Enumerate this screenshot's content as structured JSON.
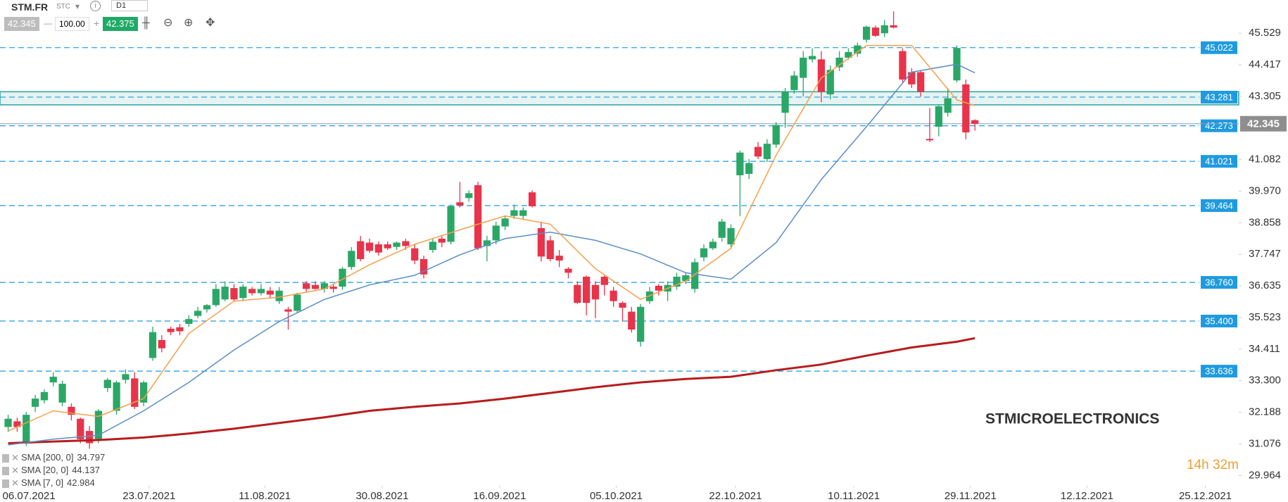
{
  "toolbar": {
    "symbol": "STM.FR",
    "tag": "STC",
    "timeframe": "D1",
    "bid": "42.345",
    "volume": "100.00",
    "ask": "42.375"
  },
  "chart_data": {
    "type": "candlestick",
    "watermark": "STMICROELECTRONICS",
    "countdown": "14h 32m",
    "up_color": "#2aa766",
    "down_color": "#e8334a",
    "x": [
      0,
      1,
      2,
      3,
      4,
      5,
      6,
      7,
      8,
      9,
      10,
      11,
      12,
      13,
      14,
      15,
      16,
      17,
      18,
      19,
      20,
      21,
      22,
      23,
      24,
      25,
      26,
      27,
      28,
      29,
      30,
      31,
      32,
      33,
      34,
      35,
      36,
      37,
      38,
      39,
      40,
      41,
      42,
      43,
      44,
      45,
      46,
      47,
      48,
      49,
      50,
      51,
      52,
      53,
      54,
      55,
      56,
      57,
      58,
      59,
      60,
      61,
      62,
      63,
      64,
      65,
      66,
      67,
      68,
      69,
      70,
      71,
      72,
      73,
      74,
      75,
      76,
      77,
      78,
      79,
      80,
      81,
      82,
      83,
      84,
      85,
      86,
      87,
      88,
      89,
      90,
      91,
      92,
      93,
      94,
      95,
      96,
      97,
      98,
      99,
      100,
      101,
      102,
      103,
      104,
      105,
      106,
      107
    ],
    "open": [
      31.67,
      31.87,
      31.1,
      32.38,
      32.61,
      33.24,
      32.53,
      32.38,
      31.96,
      31.53,
      31.24,
      33.04,
      32.24,
      33.33,
      33.38,
      32.53,
      34.1,
      34.73,
      35.13,
      35.18,
      35.3,
      35.58,
      35.81,
      35.96,
      36.16,
      36.56,
      36.21,
      36.53,
      36.38,
      36.47,
      36.1,
      35.81,
      35.76,
      36.73,
      36.67,
      36.53,
      36.61,
      36.61,
      37.3,
      38.21,
      38.16,
      38.1,
      38.1,
      38.01,
      38.21,
      37.96,
      37.58,
      37.9,
      38.3,
      38.19,
      39.58,
      39.73,
      40.18,
      38.04,
      38.24,
      38.73,
      39.1,
      39.1,
      39.93,
      38.67,
      38.24,
      37.7,
      37.24,
      36.67,
      36.96,
      36.67,
      36.96,
      36.47,
      36.04,
      35.73,
      34.67,
      36.1,
      36.64,
      36.44,
      36.61,
      36.81,
      36.53,
      37.64,
      37.96,
      38.33,
      38.1,
      40.53,
      40.58,
      41.53,
      41.1,
      41.61,
      42.73,
      43.53,
      43.96,
      44.61,
      44.61,
      43.38,
      44.33,
      44.67,
      44.81,
      45.3,
      45.73,
      45.53,
      45.81,
      44.9,
      44.16,
      44.16,
      41.81,
      42.24,
      42.73,
      43.87,
      43.73,
      42.47
    ],
    "high": [
      32.1,
      32.0,
      32.2,
      32.8,
      33.0,
      33.6,
      33.3,
      32.5,
      32.0,
      31.7,
      32.3,
      33.4,
      33.3,
      33.7,
      33.6,
      33.3,
      35.2,
      34.9,
      35.2,
      35.3,
      35.6,
      35.9,
      36.0,
      36.7,
      36.8,
      36.7,
      36.7,
      36.6,
      36.7,
      36.6,
      36.6,
      35.9,
      36.4,
      36.8,
      36.8,
      36.8,
      36.7,
      37.3,
      38.0,
      38.4,
      38.3,
      38.2,
      38.2,
      38.2,
      38.3,
      38.1,
      37.7,
      38.3,
      38.4,
      39.5,
      40.3,
      40.0,
      40.3,
      38.4,
      38.9,
      39.1,
      39.5,
      39.4,
      40.0,
      38.9,
      38.4,
      37.9,
      37.3,
      36.8,
      37.0,
      36.8,
      37.0,
      36.6,
      36.1,
      35.9,
      36.0,
      36.6,
      36.7,
      36.8,
      37.1,
      37.1,
      37.6,
      38.1,
      38.3,
      39.0,
      38.8,
      41.4,
      41.1,
      41.7,
      41.8,
      42.4,
      43.6,
      44.2,
      44.9,
      45.0,
      44.9,
      44.4,
      44.9,
      45.0,
      45.2,
      45.8,
      45.8,
      46.0,
      46.3,
      45.0,
      44.3,
      44.2,
      42.9,
      43.0,
      43.6,
      45.1,
      43.9,
      42.5
    ],
    "low": [
      31.5,
      31.5,
      31.0,
      32.2,
      32.5,
      33.1,
      32.4,
      31.9,
      31.1,
      30.9,
      31.1,
      32.9,
      32.1,
      33.2,
      32.3,
      32.4,
      34.0,
      34.3,
      34.9,
      34.9,
      35.2,
      35.5,
      35.7,
      35.9,
      36.1,
      36.1,
      36.1,
      36.3,
      36.3,
      36.2,
      36.0,
      35.1,
      35.7,
      36.4,
      36.5,
      36.4,
      36.4,
      36.5,
      37.2,
      37.5,
      37.8,
      37.7,
      37.9,
      37.9,
      37.9,
      37.4,
      36.9,
      37.8,
      38.0,
      38.1,
      39.4,
      39.6,
      37.9,
      37.5,
      38.1,
      38.6,
      39.0,
      39.0,
      39.4,
      37.5,
      37.5,
      37.3,
      36.9,
      36.0,
      35.6,
      35.5,
      36.3,
      35.9,
      35.4,
      35.0,
      34.5,
      36.0,
      36.3,
      36.1,
      36.5,
      36.7,
      36.4,
      37.5,
      37.9,
      38.2,
      38.0,
      39.1,
      40.4,
      41.1,
      41.0,
      41.5,
      42.2,
      43.4,
      43.3,
      44.5,
      43.1,
      43.2,
      44.2,
      44.6,
      44.7,
      45.2,
      45.4,
      45.4,
      45.7,
      43.8,
      43.6,
      43.3,
      41.7,
      41.9,
      42.6,
      43.8,
      41.8,
      42.1
    ],
    "close": [
      31.96,
      31.67,
      32.1,
      32.67,
      32.9,
      33.44,
      33.19,
      32.1,
      31.24,
      31.1,
      32.24,
      33.33,
      33.24,
      33.53,
      32.38,
      33.24,
      35.01,
      34.44,
      35.01,
      35.04,
      35.47,
      35.76,
      35.96,
      36.53,
      36.61,
      36.16,
      36.61,
      36.38,
      36.53,
      36.33,
      36.47,
      35.73,
      36.33,
      36.53,
      36.53,
      36.73,
      36.53,
      37.24,
      37.87,
      37.58,
      37.87,
      37.81,
      37.96,
      38.16,
      38.04,
      37.53,
      37.04,
      38.19,
      38.16,
      39.44,
      39.47,
      39.9,
      37.96,
      38.24,
      38.76,
      39.01,
      39.3,
      39.3,
      39.44,
      37.67,
      37.58,
      37.53,
      37.1,
      36.04,
      36.04,
      36.16,
      36.67,
      36.1,
      35.87,
      35.1,
      35.9,
      36.44,
      36.47,
      36.67,
      36.96,
      37.01,
      37.47,
      37.96,
      38.19,
      38.9,
      38.67,
      41.33,
      40.96,
      41.19,
      41.64,
      42.3,
      43.47,
      44.04,
      44.67,
      44.73,
      43.47,
      44.24,
      44.67,
      44.87,
      45.1,
      45.76,
      45.44,
      45.81,
      45.73,
      43.9,
      43.73,
      43.47,
      41.76,
      42.96,
      43.24,
      45.01,
      42.04,
      42.345
    ],
    "series": [
      {
        "name": "SMA [200, 0]",
        "color": "#b71c1c",
        "width": 3,
        "x": [
          0,
          5,
          10,
          15,
          20,
          25,
          30,
          35,
          40,
          45,
          50,
          55,
          60,
          65,
          70,
          75,
          80,
          85,
          90,
          95,
          100,
          105,
          107
        ],
        "values": [
          31.1,
          31.16,
          31.21,
          31.3,
          31.44,
          31.61,
          31.81,
          32.01,
          32.24,
          32.38,
          32.5,
          32.67,
          32.87,
          33.07,
          33.24,
          33.36,
          33.44,
          33.67,
          33.87,
          34.18,
          34.47,
          34.67,
          34.797
        ]
      },
      {
        "name": "SMA [20, 0]",
        "color": "#5b8fc7",
        "width": 1.5,
        "x": [
          0,
          5,
          10,
          15,
          20,
          25,
          30,
          35,
          40,
          45,
          50,
          55,
          60,
          65,
          70,
          75,
          80,
          85,
          90,
          95,
          100,
          105,
          107
        ],
        "values": [
          31.04,
          31.24,
          31.38,
          32.24,
          33.24,
          34.38,
          35.38,
          36.16,
          36.67,
          37.01,
          37.73,
          38.3,
          38.53,
          38.24,
          37.76,
          37.1,
          36.87,
          38.16,
          40.38,
          42.24,
          44.16,
          44.44,
          44.137
        ]
      },
      {
        "name": "SMA [7, 0]",
        "color": "#f5a04a",
        "width": 1.5,
        "x": [
          0,
          5,
          10,
          15,
          20,
          25,
          30,
          35,
          40,
          45,
          50,
          55,
          60,
          65,
          70,
          75,
          80,
          85,
          90,
          95,
          100,
          105,
          107
        ],
        "values": [
          31.53,
          32.24,
          32.04,
          32.67,
          34.96,
          36.1,
          36.24,
          36.53,
          37.38,
          38.1,
          38.61,
          39.1,
          38.81,
          37.24,
          36.16,
          36.81,
          37.96,
          41.24,
          43.96,
          45.1,
          45.1,
          43.18,
          42.984
        ]
      }
    ],
    "levels": [
      45.022,
      43.281,
      42.273,
      41.021,
      39.464,
      {
        "value": 36.76,
        "label": "36.760"
      },
      {
        "value": 35.4,
        "label": "35.400"
      },
      33.636
    ],
    "level_color": "#1e9be0",
    "zone": [
      43.01,
      43.47
    ],
    "zone_color": "#2aa39a",
    "last_price": 42.345,
    "xlim": [
      -0.9,
      136.2
    ],
    "xticks": [
      {
        "value": 2.3,
        "label": "06.07.2021"
      },
      {
        "value": 15.6,
        "label": "23.07.2021"
      },
      {
        "value": 28.4,
        "label": "11.08.2021"
      },
      {
        "value": 41.4,
        "label": "30.08.2021"
      },
      {
        "value": 54.4,
        "label": "16.09.2021"
      },
      {
        "value": 67.3,
        "label": "05.10.2021"
      },
      {
        "value": 80.5,
        "label": "22.10.2021"
      },
      {
        "value": 93.6,
        "label": "10.11.2021"
      },
      {
        "value": 106.5,
        "label": "29.11.2021"
      },
      {
        "value": 119.4,
        "label": "12.12.2021"
      },
      {
        "value": 132.5,
        "label": "25.12.2021"
      }
    ],
    "ylim": [
      29.6,
      46.7
    ],
    "yticks": [
      45.529,
      44.417,
      43.305,
      41.082,
      {
        "value": 39.97,
        "label": "39.970"
      },
      38.858,
      37.747,
      36.635,
      35.523,
      34.411,
      {
        "value": 33.3,
        "label": "33.300"
      },
      32.188,
      31.076,
      29.964
    ]
  }
}
